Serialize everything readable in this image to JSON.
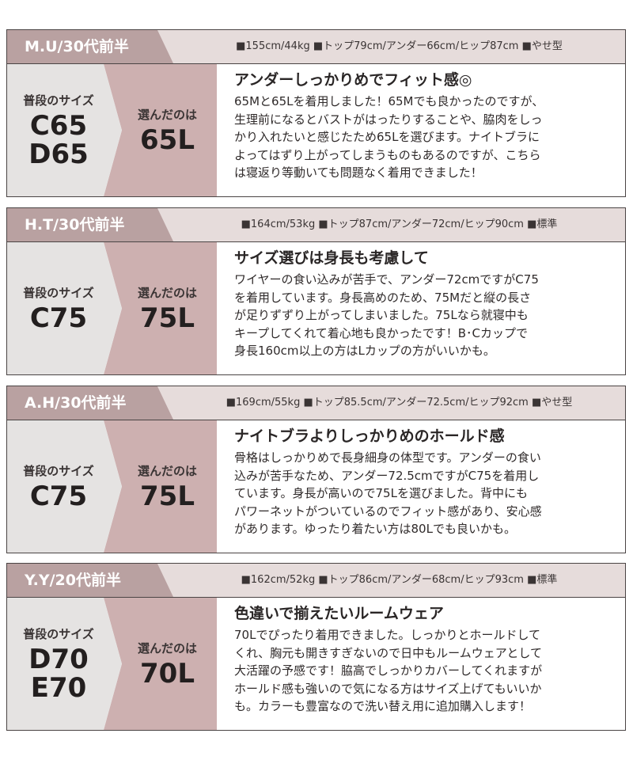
{
  "cards": [
    {
      "name": "M.U/30代前半",
      "measurements": "■155cm/44kg ■トップ79cm/アンダー66cm/ヒップ87cm ■やせ型",
      "usual_label": "普段のサイズ",
      "usual_sizes": [
        "C65",
        "D65"
      ],
      "chosen_label": "選んだのは",
      "chosen_size": "65L",
      "title": "アンダーしっかりめでフィット感◎",
      "lines": [
        "65Mと65Lを着用しました！65Mでも良かったのですが、",
        "生理前になるとバストがはったりすることや、脇肉をしっ",
        "かり入れたいと感じたため65Lを選びます。ナイトブラに",
        "よってはずり上がってしまうものもあるのですが、こちら",
        "は寝返り等動いても問題なく着用できました！"
      ]
    },
    {
      "name": "H.T/30代前半",
      "measurements": "■164cm/53kg ■トップ87cm/アンダー72cm/ヒップ90cm ■標準",
      "usual_label": "普段のサイズ",
      "usual_sizes": [
        "C75"
      ],
      "chosen_label": "選んだのは",
      "chosen_size": "75L",
      "title": "サイズ選びは身長も考慮して",
      "lines": [
        "ワイヤーの食い込みが苦手で、アンダー72cmですがC75",
        "を着用しています。身長高めのため、75Mだと縦の長さ",
        "が足りずずり上がってしまいました。75Lなら就寝中も",
        "キープしてくれて着心地も良かったです！B･Cカップで",
        "身長160cm以上の方はLカップの方がいいかも。"
      ]
    },
    {
      "name": "A.H/30代前半",
      "measurements": "■169cm/55kg ■トップ85.5cm/アンダー72.5cm/ヒップ92cm ■やせ型",
      "usual_label": "普段のサイズ",
      "usual_sizes": [
        "C75"
      ],
      "chosen_label": "選んだのは",
      "chosen_size": "75L",
      "title": "ナイトブラよりしっかりめのホールド感",
      "lines": [
        "骨格はしっかりめで長身細身の体型です。アンダーの食い",
        "込みが苦手なため、アンダー72.5cmですがC75を着用し",
        "ています。身長が高いので75Lを選びました。背中にも",
        "パワーネットがついているのでフィット感があり、安心感",
        "があります。ゆったり着たい方は80Lでも良いかも。"
      ]
    },
    {
      "name": "Y.Y/20代前半",
      "measurements": "■162cm/52kg ■トップ86cm/アンダー68cm/ヒップ93cm ■標準",
      "usual_label": "普段のサイズ",
      "usual_sizes": [
        "D70",
        "E70"
      ],
      "chosen_label": "選んだのは",
      "chosen_size": "70L",
      "title": "色違いで揃えたいルームウェア",
      "lines": [
        "70Lでぴったり着用できました。しっかりとホールドして",
        "くれ、胸元も開きすぎないので日中もルームウェアとして",
        "大活躍の予感です！脇高でしっかりカバーしてくれますが",
        "ホールド感も強いので気になる方はサイズ上げてもいいか",
        "も。カラーも豊富なので洗い替え用に追加購入します！"
      ]
    }
  ]
}
